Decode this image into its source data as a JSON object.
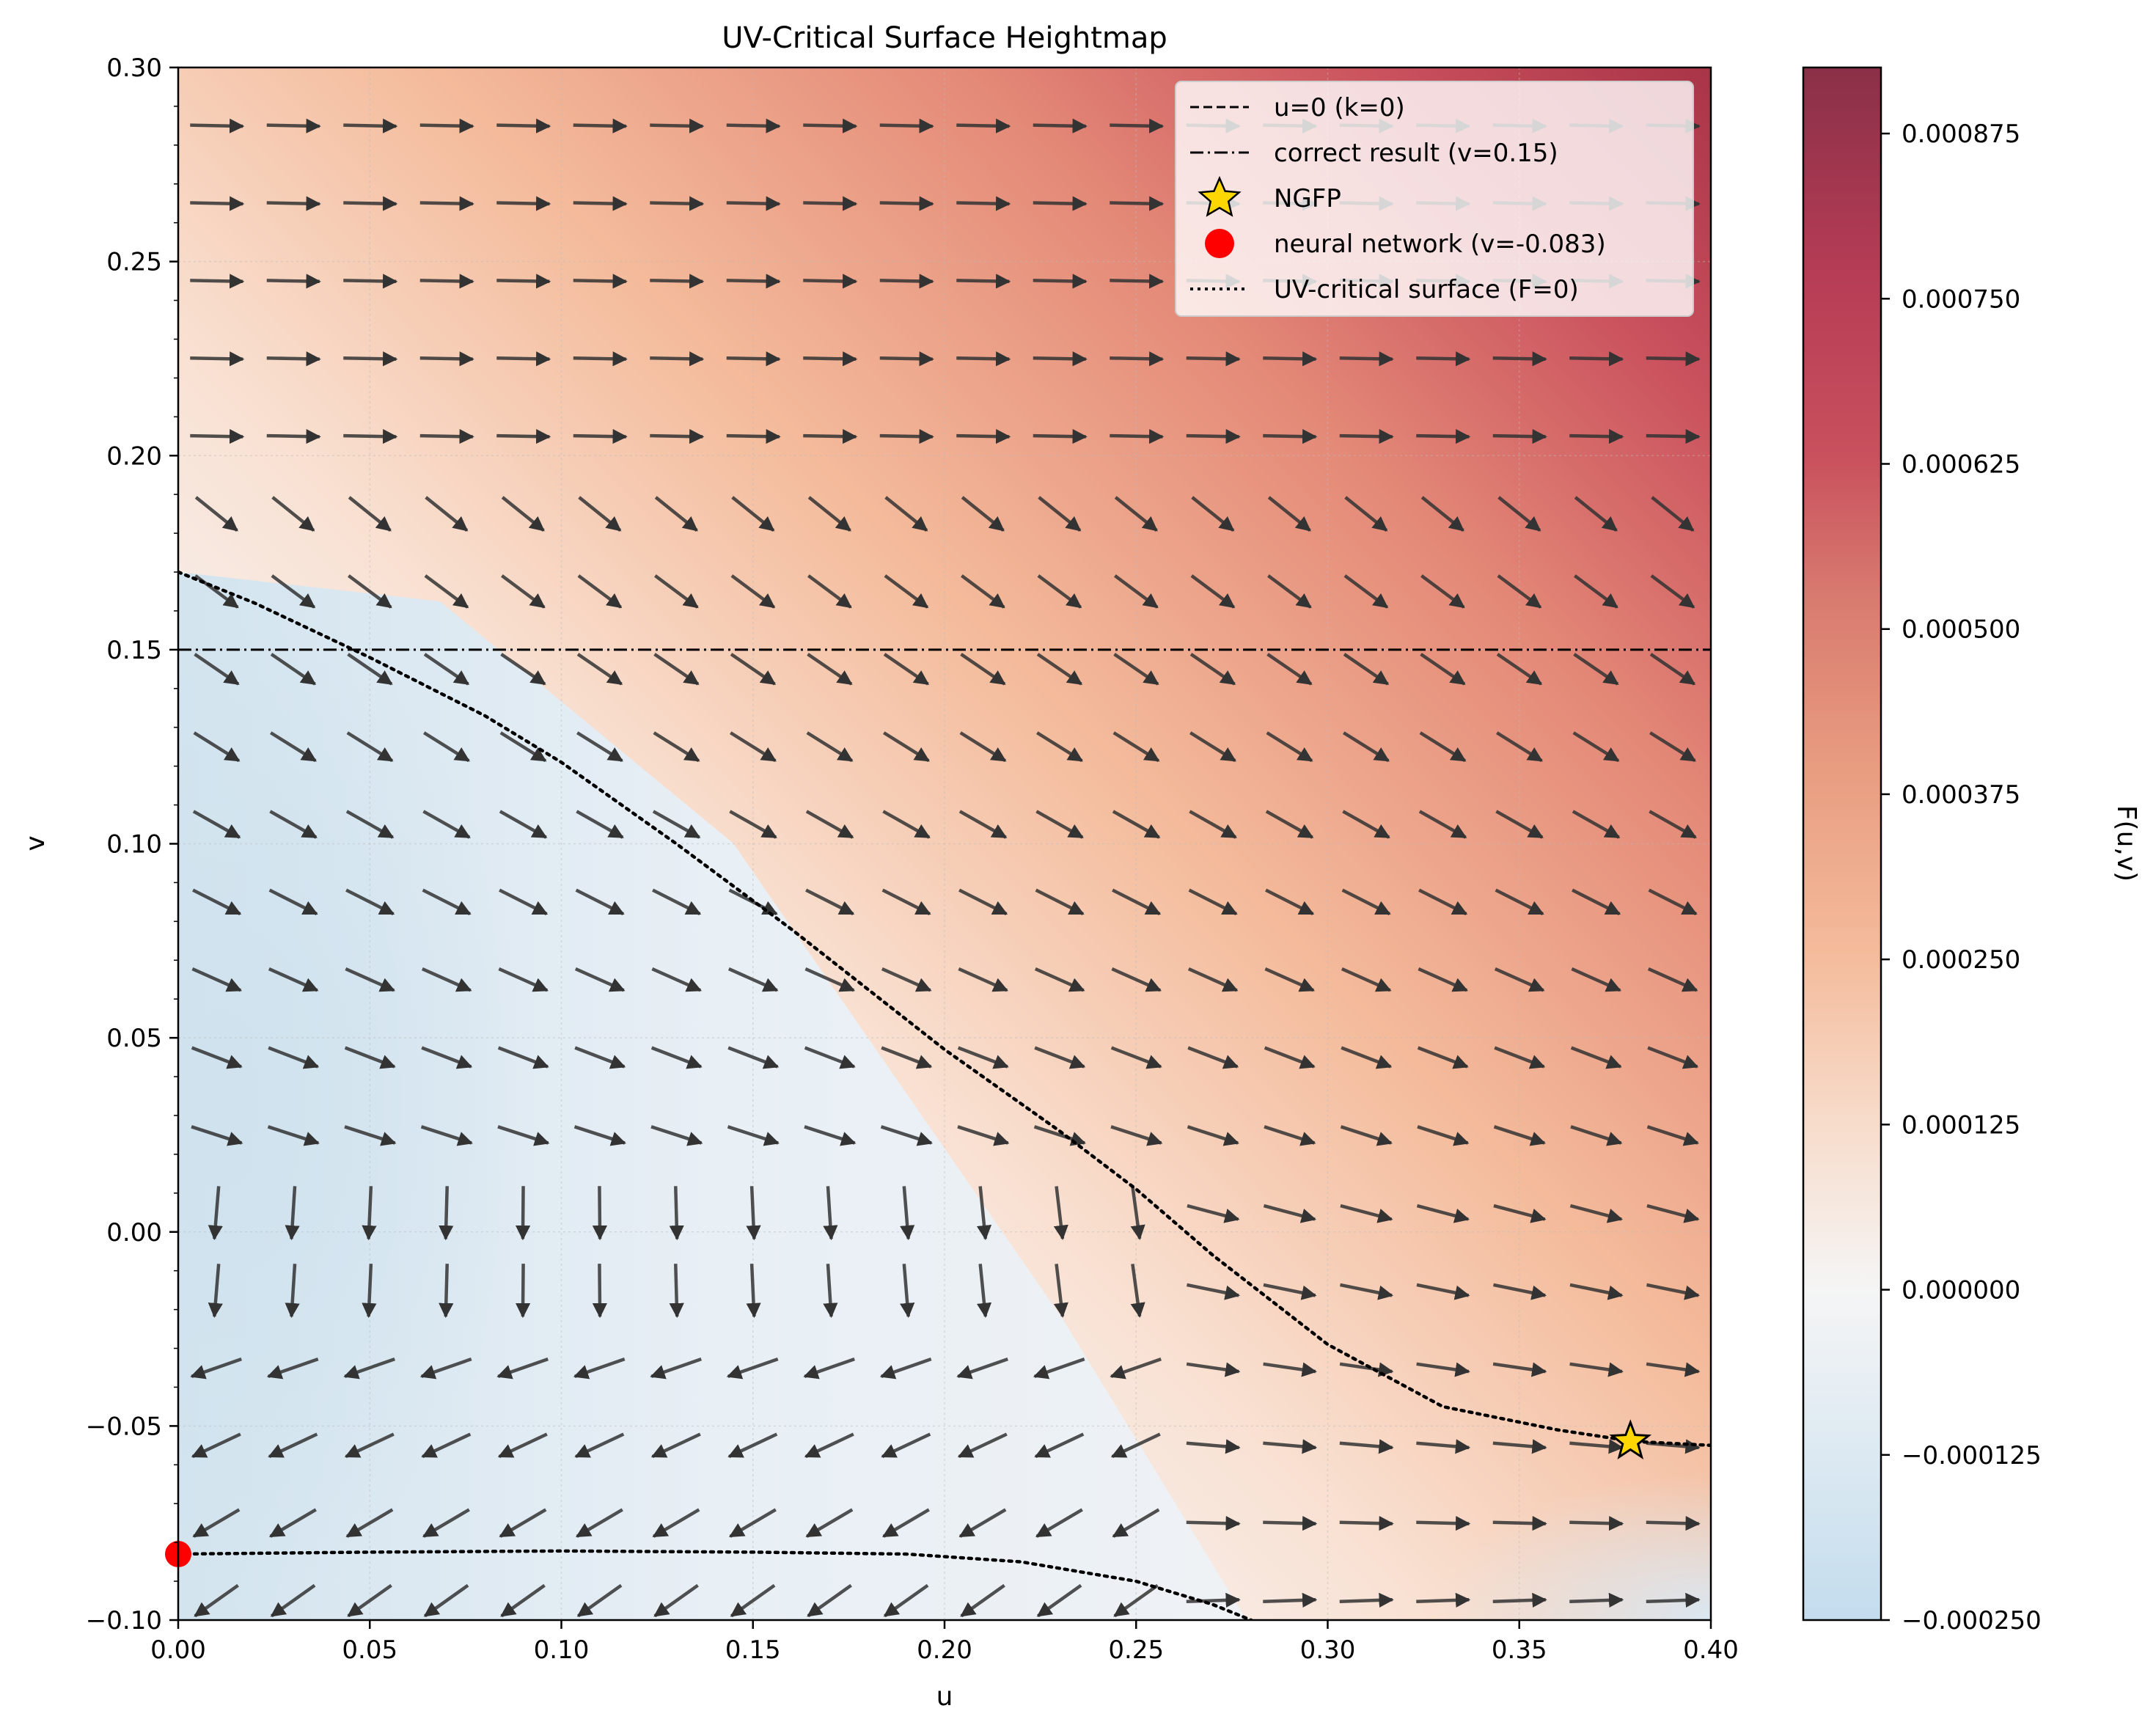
{
  "chart_data": {
    "type": "contour",
    "title": "UV-Critical Surface Heightmap",
    "xlabel": "u",
    "ylabel": "v",
    "xlim": [
      0.0,
      0.4
    ],
    "ylim": [
      -0.1,
      0.3
    ],
    "xticks": [
      0.0,
      0.05,
      0.1,
      0.15,
      0.2,
      0.25,
      0.3,
      0.35,
      0.4
    ],
    "xtick_labels": [
      "0.00",
      "0.05",
      "0.10",
      "0.15",
      "0.20",
      "0.25",
      "0.30",
      "0.35",
      "0.40"
    ],
    "yticks": [
      -0.1,
      -0.05,
      0.0,
      0.05,
      0.1,
      0.15,
      0.2,
      0.25,
      0.3
    ],
    "ytick_labels": [
      "−0.10",
      "−0.05",
      "0.00",
      "0.05",
      "0.10",
      "0.15",
      "0.20",
      "0.25",
      "0.30"
    ],
    "grid": true,
    "legend_position": "upper right",
    "colormap": "RdBu_r",
    "colorbar": {
      "label": "F(u,v)",
      "range": [
        -0.00025,
        0.000925
      ],
      "ticks": [
        -0.00025,
        -0.000125,
        0.0,
        0.000125,
        0.00025,
        0.000375,
        0.0005,
        0.000625,
        0.00075,
        0.000875
      ],
      "tick_labels": [
        "−0.000250",
        "−0.000125",
        "0.000000",
        "0.000125",
        "0.000250",
        "0.000375",
        "0.000500",
        "0.000625",
        "0.000750",
        "0.000875"
      ]
    },
    "series": [
      {
        "name": "u=0 (k=0)",
        "style": "dashed",
        "color": "#000000"
      },
      {
        "name": "correct result (v=0.15)",
        "style": "dashdot",
        "color": "#000000",
        "y": 0.15
      },
      {
        "name": "NGFP",
        "marker": "star",
        "color": "#ffd700",
        "point": [
          0.379,
          -0.054
        ]
      },
      {
        "name": "neural network (v=-0.083)",
        "marker": "circle",
        "color": "#ff0000",
        "point": [
          0.0,
          -0.083
        ]
      },
      {
        "name": "UV-critical surface (F=0)",
        "style": "dotted",
        "color": "#000000",
        "x": [
          0.0,
          0.02,
          0.05,
          0.08,
          0.1,
          0.13,
          0.16,
          0.2,
          0.23,
          0.25,
          0.27,
          0.3,
          0.33,
          0.36,
          0.38,
          0.4
        ],
        "y": [
          0.17,
          0.162,
          0.148,
          0.133,
          0.121,
          0.1,
          0.078,
          0.047,
          0.026,
          0.011,
          -0.006,
          -0.029,
          -0.045,
          -0.051,
          -0.054,
          -0.055
        ]
      },
      {
        "name": "",
        "style": "dotted",
        "color": "#000000",
        "x": [
          0.0,
          0.05,
          0.1,
          0.15,
          0.19,
          0.22,
          0.25,
          0.27,
          0.28
        ],
        "y": [
          -0.083,
          -0.0825,
          -0.0822,
          -0.0825,
          -0.083,
          -0.085,
          -0.09,
          -0.096,
          -0.1
        ]
      }
    ]
  }
}
